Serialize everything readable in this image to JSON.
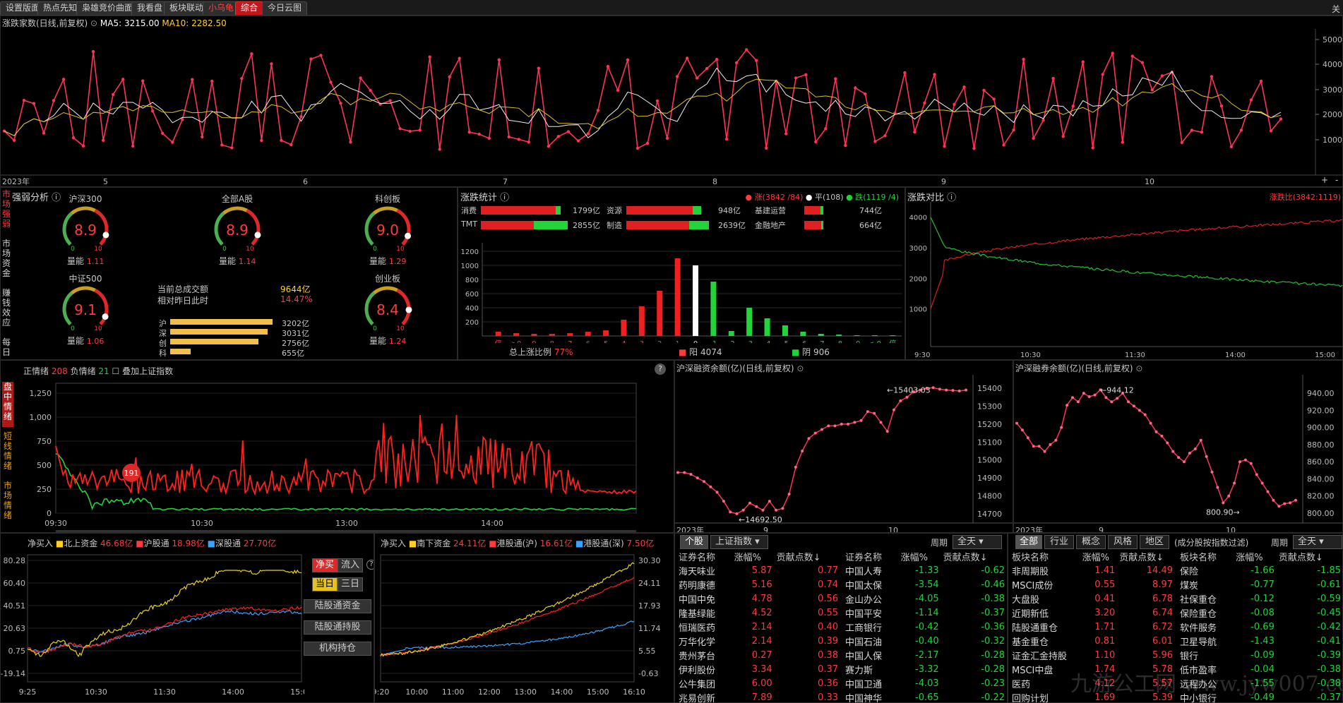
{
  "tabs": [
    "设置版面",
    "热点先知",
    "枭雄竞价曲面",
    "我看盘",
    "板块联动",
    "小乌龟",
    "综合",
    "今日云图"
  ],
  "close_label": "关",
  "top_chart": {
    "title": "涨跌家数(日线,前复权)",
    "ma5": "MA5: 3215.00",
    "ma10": "MA10: 2282.50",
    "y_ticks": [
      "5000",
      "4000",
      "3000",
      "2000",
      "1000"
    ],
    "x_ticks": [
      "2023年",
      "5",
      "6",
      "7",
      "8",
      "9",
      "10"
    ],
    "plus": "+",
    "minus": "-"
  },
  "strength": {
    "title": "强弱分析",
    "side_tabs": [
      "市场强弱",
      "市场资金",
      "赚钱效应",
      "每日"
    ],
    "gauges": [
      {
        "name": "沪深300",
        "value": "8.9",
        "vol_label": "量能",
        "vol": "1.11"
      },
      {
        "name": "全部A股",
        "value": "8.9",
        "vol_label": "量能",
        "vol": "1.14"
      },
      {
        "name": "科创板",
        "value": "9.0",
        "vol_label": "量能",
        "vol": "1.29"
      },
      {
        "name": "中证500",
        "value": "9.1",
        "vol_label": "量能",
        "vol": "1.06"
      },
      {
        "name": "创业板",
        "value": "8.4",
        "vol_label": "量能",
        "vol": "1.24"
      }
    ],
    "gauge_min": "0",
    "gauge_max": "10",
    "turnover_label": "当前总成交额",
    "turnover": "9644亿",
    "compare_label": "相对昨日此时",
    "compare": "14.47%",
    "bars": [
      {
        "label": "沪",
        "value": "3202亿",
        "frac": 1.0
      },
      {
        "label": "深",
        "value": "3031亿",
        "frac": 0.95
      },
      {
        "label": "创",
        "value": "2756亿",
        "frac": 0.86
      },
      {
        "label": "科",
        "value": "655亿",
        "frac": 0.2
      }
    ]
  },
  "updown": {
    "title": "涨跌统计",
    "legend_up": "涨(3842 /84)",
    "legend_flat": "平(108)",
    "legend_down": "跌(1119 /4)",
    "sectors": [
      {
        "name": "消费",
        "value": "1799亿",
        "red": 0.85,
        "green": 0.05
      },
      {
        "name": "资源",
        "value": "948亿",
        "red": 0.8,
        "green": 0.1
      },
      {
        "name": "基建运营",
        "value": "744亿",
        "red": 0.75,
        "green": 0.15
      },
      {
        "name": "TMT",
        "value": "2855亿",
        "red": 0.6,
        "green": 0.38
      },
      {
        "name": "制造",
        "value": "2639亿",
        "red": 0.75,
        "green": 0.24
      },
      {
        "name": "金融地产",
        "value": "664亿",
        "red": 0.8,
        "green": 0.1
      }
    ],
    "y_ticks": [
      "1200",
      "1000",
      "800",
      "600",
      "400",
      "200"
    ],
    "categories": [
      "停",
      ">9",
      "9",
      "8",
      "7",
      "6",
      "5",
      "4",
      "3",
      "2",
      "1",
      "0",
      "-1",
      "-2",
      "-3",
      "-4",
      "-5",
      "-6",
      "-7",
      "-8",
      "-9",
      "<-9",
      "停"
    ],
    "values": [
      60,
      40,
      30,
      30,
      40,
      60,
      80,
      230,
      420,
      640,
      1100,
      1000,
      770,
      70,
      400,
      250,
      150,
      60,
      30,
      20,
      10,
      10,
      10
    ],
    "ratio_label": "总上涨比例",
    "ratio": "77%",
    "yang_label": "阳 4074",
    "yin_label": "阴 906"
  },
  "compare": {
    "title": "涨跌对比",
    "ratio_label": "涨跌比(3842:1119)",
    "y_ticks": [
      "4000",
      "3000",
      "2000",
      "1000"
    ],
    "x_ticks": [
      "9:30",
      "10:30",
      "11:30",
      "14:00",
      "15:00"
    ]
  },
  "mood": {
    "side_tabs": [
      "盘中情绪",
      "短线情绪",
      "市场情绪"
    ],
    "pos_label": "正情绪",
    "pos": "208",
    "neg_label": "负情绪",
    "neg": "21",
    "overlay": "叠加上证指数",
    "help": "?",
    "y_ticks": [
      "1,250",
      "1,000",
      "750",
      "500",
      "250",
      "0"
    ],
    "x_ticks": [
      "09:30",
      "10:30",
      "13:00",
      "14:00"
    ],
    "bubble": "191"
  },
  "margin": {
    "title": "沪深融资余额(亿)(日线,前复权)",
    "y_ticks": [
      "15400",
      "15300",
      "15200",
      "15100",
      "15000",
      "14900",
      "14800",
      "14700"
    ],
    "x_ticks": [
      "2023年",
      "9",
      "10"
    ],
    "max_label": "15403.03",
    "min_label": "14692.50"
  },
  "short": {
    "title": "沪深融券余额(亿)(日线,前复权)",
    "y_ticks": [
      "940.00",
      "920.00",
      "900.00",
      "880.00",
      "860.00",
      "840.00",
      "820.00",
      "800.00"
    ],
    "x_ticks": [
      "2023年",
      "9",
      "10"
    ],
    "max_label": "944.12",
    "min_label": "800.90"
  },
  "north": {
    "label": "净买入",
    "s1": "北上资金",
    "v1": "46.68亿",
    "s2": "沪股通",
    "v2": "18.98亿",
    "s3": "深股通",
    "v3": "27.70亿",
    "y_ticks": [
      "80.28",
      "60.40",
      "40.51",
      "20.63",
      "0.75",
      "-19.14"
    ],
    "x_ticks": [
      "9:25",
      "10:30",
      "11:30",
      "14:00",
      "15:00"
    ],
    "btn_buy": "净买",
    "btn_in": "流入",
    "btn_day": "当日",
    "btn_3d": "三日",
    "btn_a": "陆股通资金",
    "btn_b": "陆股通持股",
    "btn_c": "机构持仓"
  },
  "south": {
    "label": "净买入",
    "s1": "南下资金",
    "v1": "24.11亿",
    "s2": "港股通(沪)",
    "v2": "16.61亿",
    "s3": "港股通(深)",
    "v3": "7.50亿",
    "y_ticks": [
      "30.30",
      "24.11",
      "17.93",
      "11.74",
      "5.55",
      "-0.63"
    ],
    "x_ticks": [
      "9:20",
      "10:00",
      "11:00",
      "12:00",
      "13:00",
      "14:00",
      "15:00",
      "16:10"
    ]
  },
  "stocks": {
    "tab1": "个股",
    "tab2": "上证指数",
    "period_label": "周期",
    "period": "全天",
    "headers": [
      "证券名称",
      "涨幅%",
      "贡献点数↓"
    ],
    "left": [
      [
        "海天味业",
        "5.87",
        "0.77"
      ],
      [
        "药明康德",
        "5.16",
        "0.74"
      ],
      [
        "中国中免",
        "4.78",
        "0.56"
      ],
      [
        "隆基绿能",
        "4.52",
        "0.55"
      ],
      [
        "恒瑞医药",
        "2.14",
        "0.40"
      ],
      [
        "万华化学",
        "2.14",
        "0.39"
      ],
      [
        "贵州茅台",
        "0.27",
        "0.38"
      ],
      [
        "伊利股份",
        "3.34",
        "0.37"
      ],
      [
        "公牛集团",
        "6.00",
        "0.36"
      ],
      [
        "兆易创新",
        "7.89",
        "0.33"
      ]
    ],
    "right": [
      [
        "中国人寿",
        "-1.33",
        "-0.62"
      ],
      [
        "中国太保",
        "-3.54",
        "-0.46"
      ],
      [
        "金山办公",
        "-4.05",
        "-0.38"
      ],
      [
        "中国平安",
        "-1.14",
        "-0.37"
      ],
      [
        "工商银行",
        "-0.42",
        "-0.36"
      ],
      [
        "中国石油",
        "-0.40",
        "-0.32"
      ],
      [
        "中国人保",
        "-2.17",
        "-0.28"
      ],
      [
        "赛力斯",
        "-3.32",
        "-0.28"
      ],
      [
        "中国卫通",
        "-4.03",
        "-0.23"
      ],
      [
        "中国神华",
        "-0.65",
        "-0.22"
      ]
    ]
  },
  "sectors_tbl": {
    "tabs": [
      "全部",
      "行业",
      "概念",
      "风格",
      "地区"
    ],
    "note": "(成分股按指数过滤)",
    "period_label": "周期",
    "period": "全天",
    "headers": [
      "板块名称",
      "涨幅%",
      "贡献点数↓"
    ],
    "left": [
      [
        "非周期股",
        "1.41",
        "14.49"
      ],
      [
        "MSCI成份",
        "0.55",
        "8.97"
      ],
      [
        "大盘股",
        "0.41",
        "6.78"
      ],
      [
        "近期新低",
        "3.20",
        "6.74"
      ],
      [
        "陆股通重仓",
        "1.71",
        "6.72"
      ],
      [
        "基金重仓",
        "0.81",
        "6.01"
      ],
      [
        "证金汇金持股",
        "1.10",
        "5.96"
      ],
      [
        "MSCI中盘",
        "1.74",
        "5.78"
      ],
      [
        "医药",
        "4.12",
        "5.57"
      ],
      [
        "回购计划",
        "1.69",
        "5.39"
      ]
    ],
    "right": [
      [
        "保险",
        "-1.66",
        "-1.85"
      ],
      [
        "煤炭",
        "-0.77",
        "-0.61"
      ],
      [
        "社保重仓",
        "-0.12",
        "-0.59"
      ],
      [
        "保险重仓",
        "-0.08",
        "-0.45"
      ],
      [
        "软件服务",
        "-0.69",
        "-0.42"
      ],
      [
        "卫星导航",
        "-1.43",
        "-0.41"
      ],
      [
        "银行",
        "-0.09",
        "-0.39"
      ],
      [
        "低市盈率",
        "-0.04",
        "-0.38"
      ],
      [
        "远程办公",
        "-1.55",
        "-0.38"
      ],
      [
        "中小银行",
        "-0.49",
        "-0.37"
      ]
    ]
  },
  "watermark": "九游公工网 www.jyw007.com"
}
